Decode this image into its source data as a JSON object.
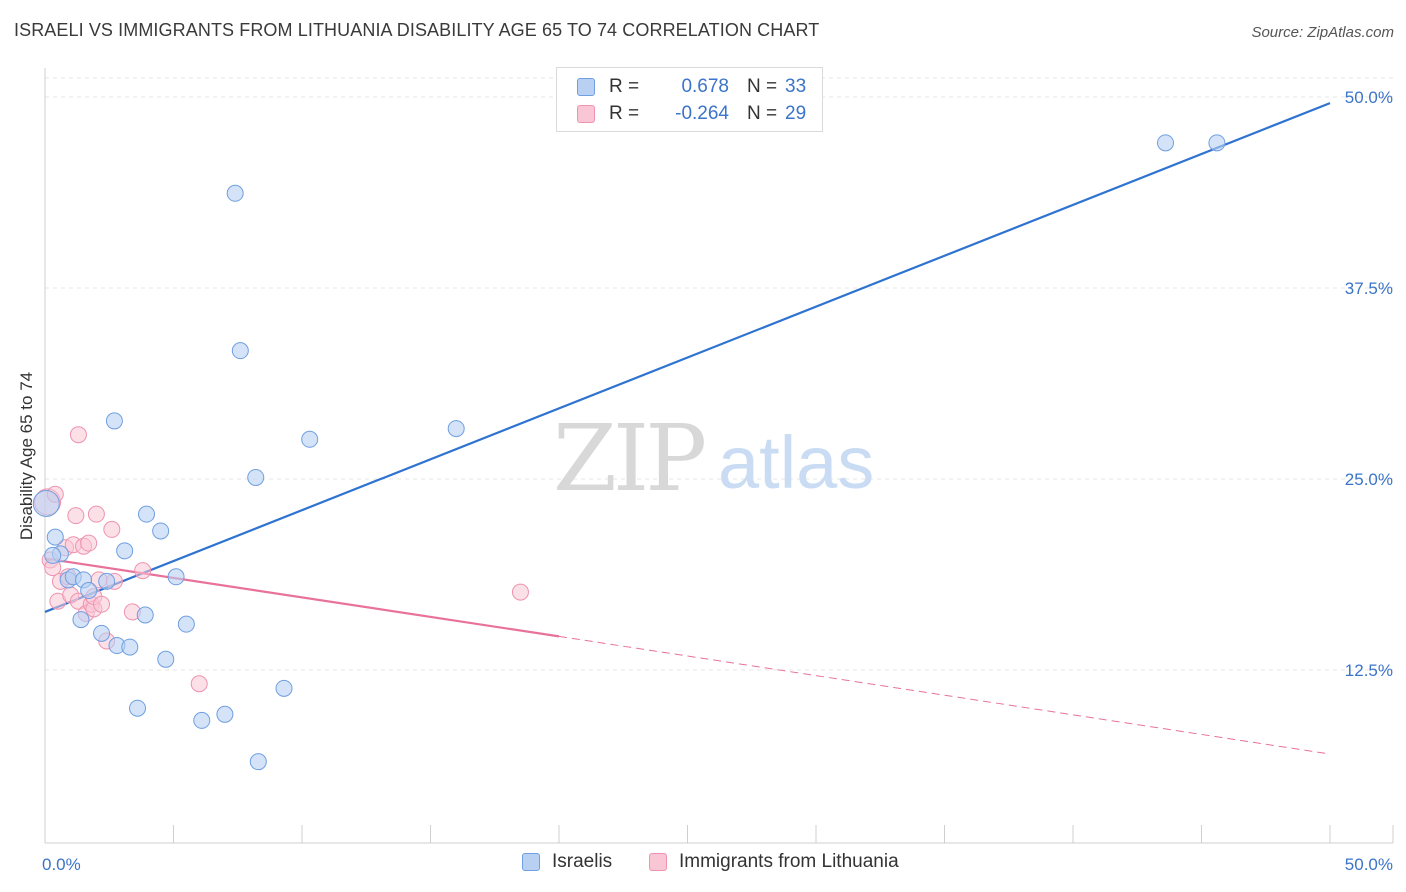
{
  "header": {
    "title": "ISRAELI VS IMMIGRANTS FROM LITHUANIA DISABILITY AGE 65 TO 74 CORRELATION CHART",
    "source": "Source: ZipAtlas.com"
  },
  "watermark": {
    "zip": "ZIP",
    "atlas": "atlas"
  },
  "legend": {
    "rows": [
      {
        "r_label": "R =",
        "r_value": "0.678",
        "n_label": "N =",
        "n_value": "33"
      },
      {
        "r_label": "R =",
        "r_value": "-0.264",
        "n_label": "N =",
        "n_value": "29"
      }
    ]
  },
  "colors": {
    "israelis_fill": "#b8d1f3",
    "israelis_stroke": "#6f9fe0",
    "israelis_line": "#2f73d1",
    "lithuania_fill": "#f9c6d5",
    "lithuania_stroke": "#ee93b0",
    "lithuania_line": "#e8729a",
    "axis_label": "#3b74c9"
  },
  "chart_data": {
    "type": "scatter",
    "title": "ISRAELI VS IMMIGRANTS FROM LITHUANIA DISABILITY AGE 65 TO 74 CORRELATION CHART",
    "xlabel": "",
    "ylabel": "Disability Age 65 to 74",
    "xlim": [
      0,
      50
    ],
    "ylim": [
      0,
      50
    ],
    "x_tick_labels": [
      "0.0%",
      "50.0%"
    ],
    "y_ticks": [
      12.5,
      25.0,
      37.5,
      50.0
    ],
    "y_tick_labels": [
      "12.5%",
      "25.0%",
      "37.5%",
      "50.0%"
    ],
    "grid": true,
    "legend_position": "bottom",
    "series": [
      {
        "name": "Israelis",
        "r": 0.678,
        "n": 33,
        "points": [
          [
            0.05,
            23.4
          ],
          [
            0.4,
            21.2
          ],
          [
            0.6,
            20.1
          ],
          [
            0.9,
            18.4
          ],
          [
            1.1,
            18.6
          ],
          [
            1.5,
            18.4
          ],
          [
            1.4,
            15.8
          ],
          [
            1.7,
            17.7
          ],
          [
            2.2,
            14.9
          ],
          [
            2.4,
            18.3
          ],
          [
            2.7,
            28.8
          ],
          [
            2.8,
            14.1
          ],
          [
            3.1,
            20.3
          ],
          [
            3.3,
            14.0
          ],
          [
            3.6,
            10.0
          ],
          [
            3.9,
            16.1
          ],
          [
            3.95,
            22.7
          ],
          [
            4.5,
            21.6
          ],
          [
            4.7,
            13.2
          ],
          [
            5.1,
            18.6
          ],
          [
            5.5,
            15.5
          ],
          [
            6.1,
            9.2
          ],
          [
            7.0,
            9.6
          ],
          [
            7.4,
            43.7
          ],
          [
            7.6,
            33.4
          ],
          [
            8.2,
            25.1
          ],
          [
            8.3,
            6.5
          ],
          [
            9.3,
            11.3
          ],
          [
            10.3,
            27.6
          ],
          [
            16.0,
            28.3
          ],
          [
            43.6,
            47.0
          ],
          [
            45.6,
            47.0
          ],
          [
            0.3,
            20.0
          ]
        ],
        "trend": {
          "x": [
            0,
            50
          ],
          "y": [
            16.3,
            49.6
          ]
        }
      },
      {
        "name": "Immigrants from Lithuania",
        "r": -0.264,
        "n": 29,
        "points": [
          [
            0.1,
            23.5
          ],
          [
            0.2,
            19.7
          ],
          [
            0.3,
            19.2
          ],
          [
            0.5,
            17.0
          ],
          [
            0.6,
            18.3
          ],
          [
            0.8,
            20.5
          ],
          [
            0.9,
            18.6
          ],
          [
            1.0,
            17.4
          ],
          [
            1.1,
            20.7
          ],
          [
            1.2,
            22.6
          ],
          [
            1.3,
            17.0
          ],
          [
            1.3,
            27.9
          ],
          [
            1.5,
            20.6
          ],
          [
            1.6,
            16.2
          ],
          [
            1.7,
            20.8
          ],
          [
            1.8,
            16.8
          ],
          [
            1.9,
            16.5
          ],
          [
            1.9,
            17.3
          ],
          [
            2.0,
            22.7
          ],
          [
            2.1,
            18.4
          ],
          [
            2.2,
            16.8
          ],
          [
            2.4,
            14.4
          ],
          [
            2.6,
            21.7
          ],
          [
            2.7,
            18.3
          ],
          [
            3.4,
            16.3
          ],
          [
            3.8,
            19.0
          ],
          [
            6.0,
            11.6
          ],
          [
            18.5,
            17.6
          ],
          [
            0.4,
            24.0
          ]
        ],
        "trend_solid": {
          "x": [
            0,
            20
          ],
          "y": [
            19.8,
            14.7
          ]
        },
        "trend_dashed": {
          "x": [
            20,
            50
          ],
          "y": [
            14.7,
            7.0
          ]
        }
      }
    ]
  },
  "bottom_legend": {
    "items": [
      {
        "label": "Israelis"
      },
      {
        "label": "Immigrants from Lithuania"
      }
    ]
  }
}
